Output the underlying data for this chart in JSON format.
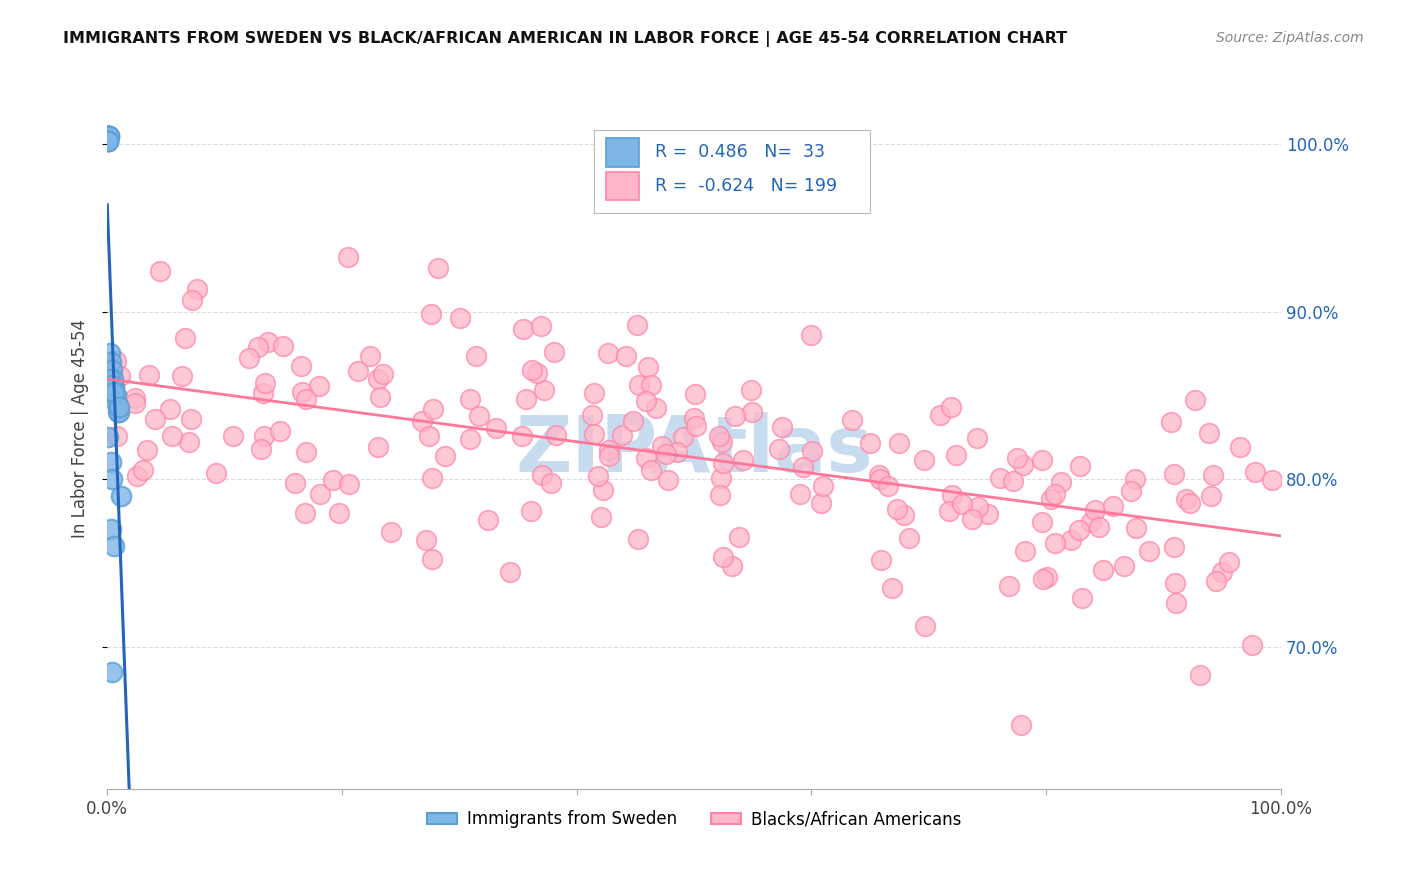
{
  "title": "IMMIGRANTS FROM SWEDEN VS BLACK/AFRICAN AMERICAN IN LABOR FORCE | AGE 45-54 CORRELATION CHART",
  "source": "Source: ZipAtlas.com",
  "ylabel": "In Labor Force | Age 45-54",
  "legend_label_blue": "Immigrants from Sweden",
  "legend_label_pink": "Blacks/African Americans",
  "R_blue": 0.486,
  "N_blue": 33,
  "R_pink": -0.624,
  "N_pink": 199,
  "blue_scatter_color": "#7EB6E8",
  "blue_edge_color": "#5A9FD4",
  "pink_scatter_color": "#FFB6C8",
  "pink_edge_color": "#FF85A8",
  "trend_blue_color": "#2266BB",
  "trend_pink_color": "#FF7799",
  "watermark_color": "#C8DCF0",
  "background_color": "#FFFFFF",
  "xlim": [
    0.0,
    1.0
  ],
  "ylim": [
    0.615,
    1.045
  ],
  "yticks": [
    0.7,
    0.8,
    0.9,
    1.0
  ],
  "ytick_labels": [
    "70.0%",
    "80.0%",
    "90.0%",
    "100.0%"
  ],
  "xticks": [
    0.0,
    0.2,
    0.4,
    0.6,
    0.8,
    1.0
  ],
  "xtick_labels_show": [
    "0.0%",
    "",
    "",
    "",
    "",
    "100.0%"
  ],
  "grid_color": "#DDDDDD",
  "legend_box_color": "#AAAAAA",
  "legend_text_color": "#2266BB",
  "legend_value_color": "#2266BB"
}
